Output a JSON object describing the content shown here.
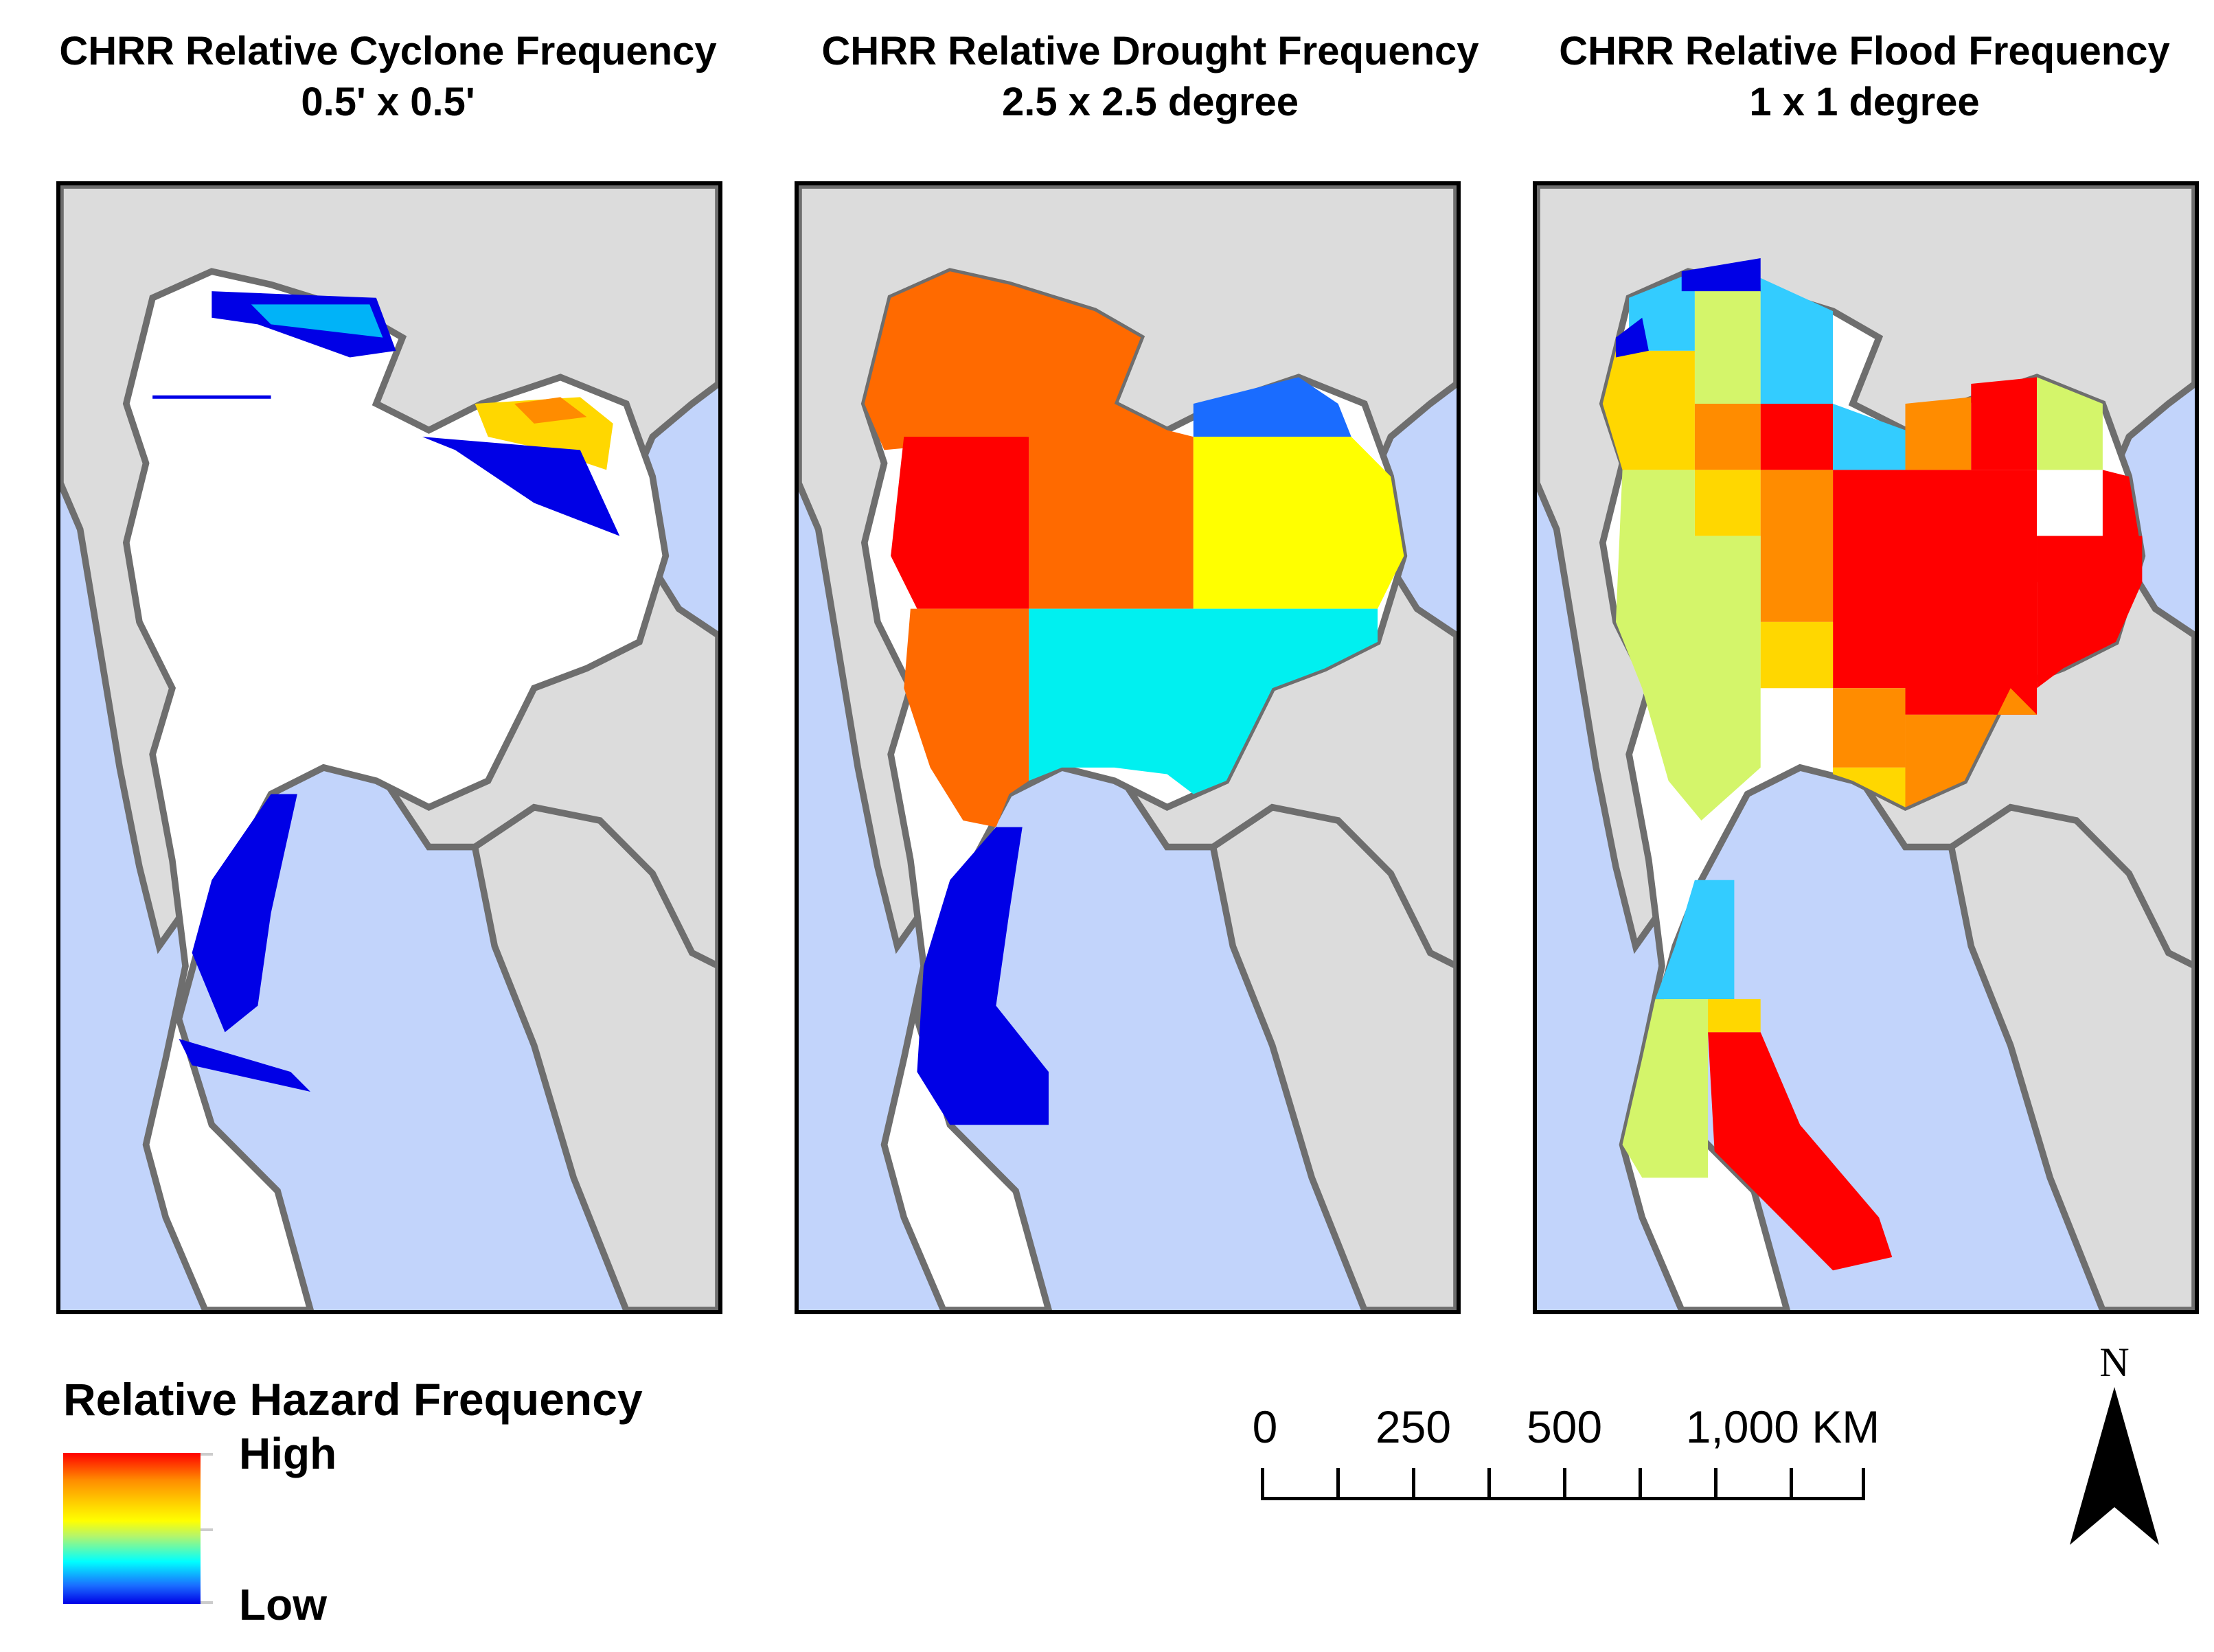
{
  "panels": [
    {
      "title_line1": "CHRR Relative Cyclone Frequency",
      "title_line2": "0.5' x 0.5'"
    },
    {
      "title_line1": "CHRR Relative Drought Frequency",
      "title_line2": "2.5 x 2.5 degree"
    },
    {
      "title_line1": "CHRR Relative Flood Frequency",
      "title_line2": "1 x 1 degree"
    }
  ],
  "legend": {
    "title": "Relative Hazard Frequency",
    "high_label": "High",
    "low_label": "Low",
    "colors": [
      "#ff0000",
      "#ff8c00",
      "#ffd700",
      "#ffff00",
      "#b5f56a",
      "#00ffff",
      "#1a6cff",
      "#0000e6"
    ]
  },
  "scale_bar": {
    "labels": [
      "0",
      "250",
      "500",
      "1,000 KM"
    ]
  },
  "north_arrow": {
    "label": "N"
  },
  "map_colors": {
    "water": "#c2d4fb",
    "land": "#dcdcdc",
    "border": "#6e6e6e",
    "no_data": "#ffffff"
  }
}
